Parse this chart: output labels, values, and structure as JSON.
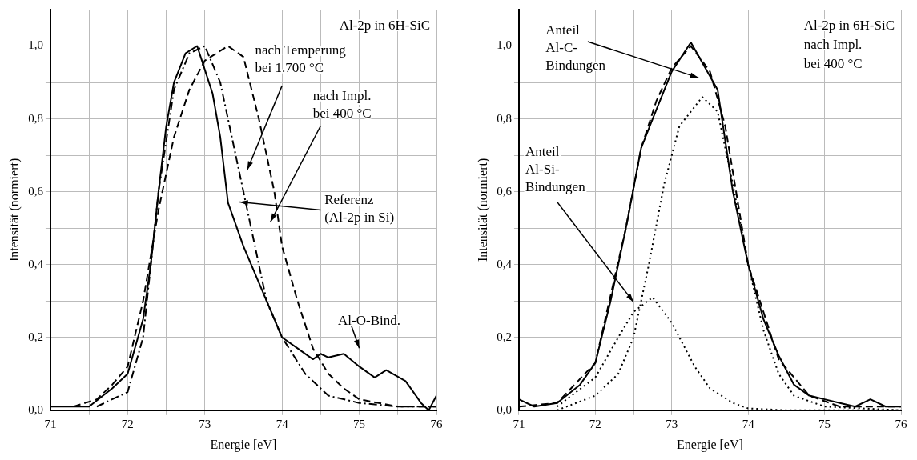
{
  "chart_data": [
    {
      "type": "line",
      "title": "Al-2p in 6H-SiC",
      "xlabel": "Energie [eV]",
      "ylabel": "Intensität (normiert)",
      "xlim": [
        71,
        76
      ],
      "ylim": [
        0,
        1.1
      ],
      "xticks": [
        71,
        {
          "value": 71.5,
          "label": null
        },
        72,
        {
          "value": 72.5,
          "label": null
        },
        73,
        {
          "value": 73.5,
          "label": null
        },
        74,
        {
          "value": 74.5,
          "label": null
        },
        75,
        {
          "value": 75.5,
          "label": null
        },
        76
      ],
      "yticks": [
        {
          "value": 0,
          "label": "0,0"
        },
        {
          "value": 0.1,
          "label": null
        },
        {
          "value": 0.2,
          "label": "0,2"
        },
        {
          "value": 0.3,
          "label": null
        },
        {
          "value": 0.4,
          "label": "0,4"
        },
        {
          "value": 0.5,
          "label": null
        },
        {
          "value": 0.6,
          "label": "0,6"
        },
        {
          "value": 0.7,
          "label": null
        },
        {
          "value": 0.8,
          "label": "0,8"
        },
        {
          "value": 0.9,
          "label": null
        },
        {
          "value": 1.0,
          "label": "1,0"
        }
      ],
      "grid": true,
      "legend": false,
      "series": [
        {
          "color": "#000000",
          "line_style": "solid",
          "x": [
            71,
            71.5,
            71.8,
            72,
            72.2,
            72.3,
            72.4,
            72.5,
            72.6,
            72.75,
            72.9,
            73.1,
            73.2,
            73.3,
            73.5,
            73.7,
            73.9,
            74.0,
            74.2,
            74.4,
            74.5,
            74.6,
            74.8,
            75.0,
            75.2,
            75.35,
            75.6,
            75.8,
            75.9,
            76
          ],
          "values": [
            0.01,
            0.01,
            0.06,
            0.1,
            0.25,
            0.4,
            0.6,
            0.78,
            0.9,
            0.98,
            1.0,
            0.87,
            0.75,
            0.57,
            0.45,
            0.35,
            0.25,
            0.2,
            0.17,
            0.14,
            0.155,
            0.145,
            0.155,
            0.12,
            0.09,
            0.11,
            0.08,
            0.02,
            0.0,
            0.04
          ]
        },
        {
          "color": "#000000",
          "line_style": "dashdot",
          "x": [
            71.6,
            72,
            72.2,
            72.4,
            72.6,
            72.8,
            73.0,
            73.2,
            73.4,
            73.6,
            73.8,
            74,
            74.3,
            74.6,
            75,
            75.5,
            76
          ],
          "values": [
            0.01,
            0.05,
            0.2,
            0.6,
            0.88,
            0.98,
            1.0,
            0.9,
            0.7,
            0.5,
            0.3,
            0.2,
            0.1,
            0.04,
            0.02,
            0.01,
            0.01
          ]
        },
        {
          "color": "#000000",
          "line_style": "dashed",
          "x": [
            71.3,
            71.6,
            71.8,
            72,
            72.2,
            72.4,
            72.6,
            72.8,
            73,
            73.3,
            73.5,
            73.7,
            73.9,
            74.0,
            74.2,
            74.4,
            74.6,
            74.8,
            75,
            75.5,
            76
          ],
          "values": [
            0.01,
            0.03,
            0.07,
            0.12,
            0.3,
            0.55,
            0.75,
            0.88,
            0.96,
            1.0,
            0.97,
            0.8,
            0.6,
            0.45,
            0.3,
            0.17,
            0.1,
            0.06,
            0.03,
            0.01,
            0.01
          ]
        }
      ],
      "annotations": [
        "nach Temperung\nbei 1.700 °C",
        "nach Impl.\nbei 400 °C",
        "Referenz\n(Al-2p in Si)",
        "Al-O-Bind."
      ]
    },
    {
      "type": "line",
      "title": "Al-2p in 6H-SiC",
      "subtitle": "nach Impl.\nbei 400 °C",
      "xlabel": "Energie [eV]",
      "ylabel": "Intensität (normiert)",
      "xlim": [
        71,
        76
      ],
      "ylim": [
        0,
        1.1
      ],
      "xticks": [
        71,
        {
          "value": 71.5,
          "label": null
        },
        72,
        {
          "value": 72.5,
          "label": null
        },
        73,
        {
          "value": 73.5,
          "label": null
        },
        74,
        {
          "value": 74.5,
          "label": null
        },
        75,
        {
          "value": 75.5,
          "label": null
        },
        76
      ],
      "yticks": [
        {
          "value": 0,
          "label": "0,0"
        },
        {
          "value": 0.1,
          "label": null
        },
        {
          "value": 0.2,
          "label": "0,2"
        },
        {
          "value": 0.3,
          "label": null
        },
        {
          "value": 0.4,
          "label": "0,4"
        },
        {
          "value": 0.5,
          "label": null
        },
        {
          "value": 0.6,
          "label": "0,6"
        },
        {
          "value": 0.7,
          "label": null
        },
        {
          "value": 0.8,
          "label": "0,8"
        },
        {
          "value": 0.9,
          "label": null
        },
        {
          "value": 1.0,
          "label": "1,0"
        }
      ],
      "grid": true,
      "legend": false,
      "series": [
        {
          "color": "#000000",
          "line_style": "solid",
          "x": [
            71,
            71.2,
            71.5,
            71.8,
            72,
            72.2,
            72.4,
            72.6,
            72.75,
            73,
            73.25,
            73.6,
            73.8,
            74,
            74.2,
            74.4,
            74.6,
            74.8,
            75,
            75.2,
            75.4,
            75.6,
            75.8,
            76
          ],
          "values": [
            0.03,
            0.01,
            0.02,
            0.07,
            0.13,
            0.3,
            0.5,
            0.72,
            0.8,
            0.93,
            1.01,
            0.88,
            0.6,
            0.4,
            0.25,
            0.15,
            0.07,
            0.04,
            0.03,
            0.02,
            0.01,
            0.03,
            0.01,
            0.01
          ]
        },
        {
          "color": "#000000",
          "line_style": "dashed",
          "x": [
            71,
            71.5,
            72,
            72.4,
            72.6,
            72.8,
            73,
            73.25,
            73.5,
            73.7,
            74,
            74.4,
            74.8,
            75.2,
            76
          ],
          "values": [
            0.01,
            0.02,
            0.13,
            0.5,
            0.72,
            0.85,
            0.94,
            1.0,
            0.93,
            0.78,
            0.4,
            0.14,
            0.04,
            0.01,
            0.01
          ]
        },
        {
          "color": "#000000",
          "line_style": "dotted",
          "x": [
            71.5,
            72,
            72.3,
            72.5,
            72.7,
            72.9,
            73.1,
            73.4,
            73.6,
            73.8,
            74,
            74.2,
            74.4,
            74.6,
            75,
            76
          ],
          "values": [
            0.0,
            0.04,
            0.1,
            0.2,
            0.4,
            0.62,
            0.78,
            0.86,
            0.82,
            0.62,
            0.4,
            0.22,
            0.1,
            0.04,
            0.01,
            0.0
          ]
        },
        {
          "color": "#000000",
          "line_style": "dotted",
          "x": [
            71.5,
            72,
            72.3,
            72.5,
            72.75,
            73,
            73.3,
            73.5,
            73.8,
            74,
            74.5,
            76
          ],
          "values": [
            0.01,
            0.09,
            0.2,
            0.27,
            0.31,
            0.24,
            0.12,
            0.06,
            0.02,
            0.005,
            0.0,
            0.0
          ]
        }
      ],
      "annotations": [
        "Anteil\nAl-C-\nBindungen",
        "Anteil\nAl-Si-\nBindungen"
      ]
    }
  ]
}
